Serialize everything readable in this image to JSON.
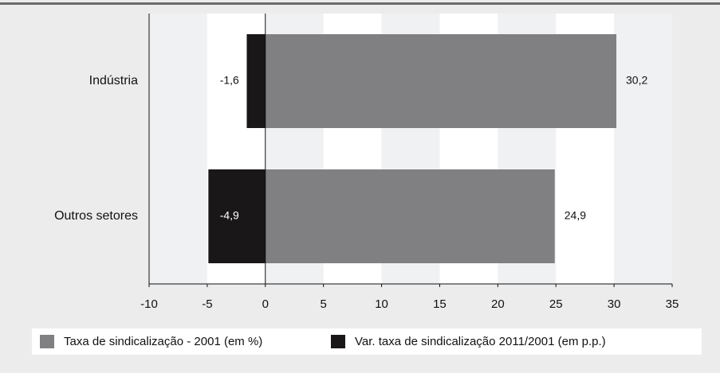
{
  "chart_data": {
    "type": "hbar",
    "categories": [
      "Indústria",
      "Outros setores"
    ],
    "series": [
      {
        "name": "Taxa de sindicalização - 2001 (em %)",
        "color": "#808083",
        "values": [
          30.2,
          24.9
        ],
        "value_labels": [
          "30,2",
          "24,9"
        ]
      },
      {
        "name": "Var. taxa de sindicalização 2011/2001 (em p.p.)",
        "color": "#1a1718",
        "values": [
          -1.6,
          -4.9
        ],
        "value_labels": [
          "-1,6",
          "-4,9"
        ]
      }
    ],
    "xlim": [
      -10,
      35
    ],
    "xticks": [
      -10,
      -5,
      0,
      5,
      10,
      15,
      20,
      25,
      30,
      35
    ]
  }
}
